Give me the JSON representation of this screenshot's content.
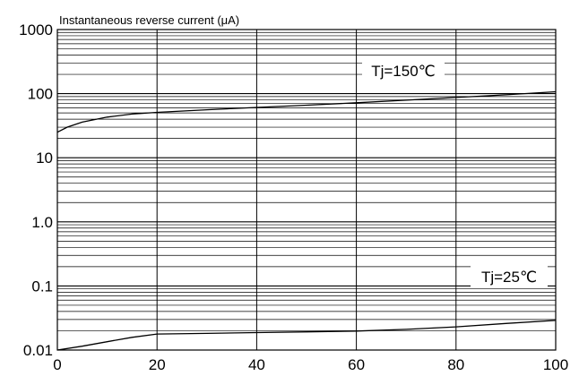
{
  "chart_data": {
    "type": "line",
    "title": "",
    "ylabel": "Instantaneous reverse current (μA)",
    "xlabel": "",
    "x_scale": "linear",
    "y_scale": "log",
    "xlim": [
      0,
      100
    ],
    "ylim": [
      0.01,
      1000
    ],
    "grid": true,
    "x_ticks": [
      "0",
      "20",
      "40",
      "60",
      "80",
      "100"
    ],
    "y_ticks": [
      "1000",
      "100",
      "10",
      "1.0",
      "0.1",
      "0.01"
    ],
    "series": [
      {
        "name": "Tj=150℃",
        "x": [
          0,
          2,
          5,
          10,
          15,
          20,
          30,
          40,
          50,
          60,
          70,
          80,
          90,
          100
        ],
        "y": [
          25,
          30,
          36,
          43,
          48,
          51,
          56,
          61,
          66,
          72,
          79,
          87,
          96,
          107
        ]
      },
      {
        "name": "Tj=25℃",
        "x": [
          0,
          5,
          10,
          15,
          20,
          30,
          40,
          50,
          60,
          70,
          80,
          90,
          100
        ],
        "y": [
          0.01,
          0.0115,
          0.0135,
          0.0158,
          0.0178,
          0.0182,
          0.0187,
          0.0192,
          0.0198,
          0.021,
          0.023,
          0.026,
          0.029
        ]
      }
    ]
  }
}
